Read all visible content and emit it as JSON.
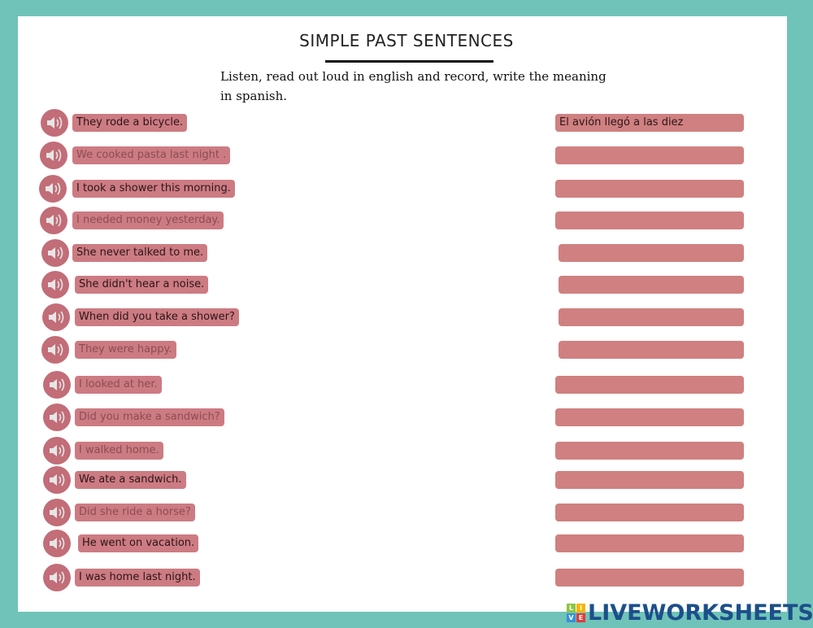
{
  "title": "SIMPLE PAST SENTENCES",
  "instructions": "Listen, read out loud in english and record, write the meaning in spanish.",
  "rows": [
    {
      "sentence": "They rode a bicycle.",
      "answer": "El avión llegó a las diez"
    },
    {
      "sentence": "We cooked pasta last night .",
      "answer": ""
    },
    {
      "sentence": "I took a shower this morning.",
      "answer": ""
    },
    {
      "sentence": "I needed money yesterday.",
      "answer": ""
    },
    {
      "sentence": "She never talked to me.",
      "answer": ""
    },
    {
      "sentence": "She didn't hear a noise.",
      "answer": ""
    },
    {
      "sentence": "When did you take a shower?",
      "answer": ""
    },
    {
      "sentence": "They were happy.",
      "answer": ""
    },
    {
      "sentence": "I looked at her.",
      "answer": ""
    },
    {
      "sentence": "Did you make a sandwich?",
      "answer": ""
    },
    {
      "sentence": "I walked home.",
      "answer": ""
    },
    {
      "sentence": "We ate a sandwich.",
      "answer": ""
    },
    {
      "sentence": "Did she ride a horse?",
      "answer": ""
    },
    {
      "sentence": "He went on vacation.",
      "answer": ""
    },
    {
      "sentence": "I was home last night.",
      "answer": ""
    }
  ],
  "icons": {
    "audio": "speaker-icon"
  },
  "colors": {
    "background": "#70c3b8",
    "pill": "#cd7b82",
    "answer": "#d08080",
    "speaker": "#c26d78"
  },
  "logo": {
    "text": "LIVEWORKSHEETS",
    "blocks": [
      "L",
      "I",
      "V",
      "E"
    ]
  }
}
